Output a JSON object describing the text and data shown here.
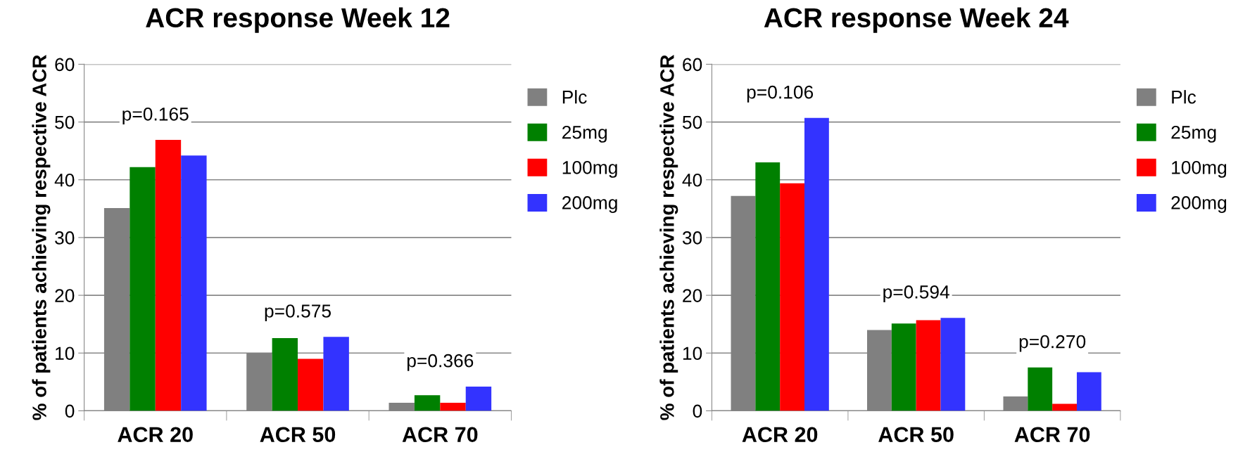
{
  "chart_data": [
    {
      "type": "bar",
      "title": "ACR response Week 12",
      "ylabel": "% of patients achieving respective ACR",
      "categories": [
        "ACR 20",
        "ACR 50",
        "ACR 70"
      ],
      "series": [
        {
          "name": "Plc",
          "color": "#808080",
          "values": [
            35.1,
            10.0,
            1.4
          ]
        },
        {
          "name": "25mg",
          "color": "#008000",
          "values": [
            42.2,
            12.6,
            2.7
          ]
        },
        {
          "name": "100mg",
          "color": "#ff0000",
          "values": [
            46.9,
            9.0,
            1.4
          ]
        },
        {
          "name": "200mg",
          "color": "#3333ff",
          "values": [
            44.2,
            12.8,
            4.2
          ]
        }
      ],
      "ylim": [
        0,
        60
      ],
      "yticks": [
        0,
        10,
        20,
        30,
        40,
        50,
        60
      ],
      "grid": "y",
      "legend": "right",
      "annotations": [
        "p=0.165",
        "p=0.575",
        "p=0.366"
      ]
    },
    {
      "type": "bar",
      "title": "ACR response Week 24",
      "ylabel": "% of patients achieving respective ACR",
      "categories": [
        "ACR 20",
        "ACR 50",
        "ACR 70"
      ],
      "series": [
        {
          "name": "Plc",
          "color": "#808080",
          "values": [
            37.2,
            14.0,
            2.5
          ]
        },
        {
          "name": "25mg",
          "color": "#008000",
          "values": [
            43.0,
            15.1,
            7.5
          ]
        },
        {
          "name": "100mg",
          "color": "#ff0000",
          "values": [
            39.4,
            15.7,
            1.2
          ]
        },
        {
          "name": "200mg",
          "color": "#3333ff",
          "values": [
            50.7,
            16.1,
            6.7
          ]
        }
      ],
      "ylim": [
        0,
        60
      ],
      "yticks": [
        0,
        10,
        20,
        30,
        40,
        50,
        60
      ],
      "grid": "y",
      "legend": "right",
      "annotations": [
        "p=0.106",
        "p=0.594",
        "p=0.270"
      ]
    }
  ]
}
